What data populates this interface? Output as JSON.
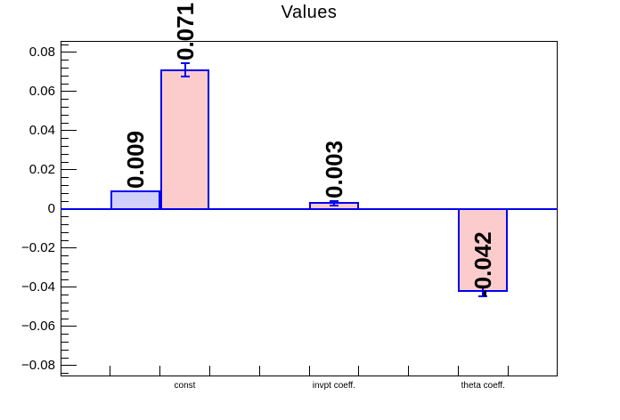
{
  "chart_data": {
    "type": "bar",
    "title": "Values",
    "xlabel": "",
    "ylabel": "",
    "ylim": [
      -0.0855,
      0.0859
    ],
    "grid": false,
    "legend": "none",
    "n_bins": 10,
    "categories": [
      {
        "label": "const",
        "center_bin": 2.5
      },
      {
        "label": "invpt coeff.",
        "center_bin": 5.5
      },
      {
        "label": "theta coeff.",
        "center_bin": 8.5
      }
    ],
    "bars": [
      {
        "category": "const",
        "bin": 1,
        "value": 0.009,
        "error": 0.0,
        "label": "0.009",
        "fill": "#d0d0fa"
      },
      {
        "category": "const",
        "bin": 2,
        "value": 0.071,
        "error": 0.0035,
        "label": "0.071",
        "fill": "#fccccd"
      },
      {
        "category": "invpt coeff.",
        "bin": 5,
        "value": 0.003,
        "error": 0.001,
        "label": "0.003",
        "fill": "#fccccd"
      },
      {
        "category": "theta coeff.",
        "bin": 8,
        "value": -0.042,
        "error": 0.0025,
        "label": "-0.042",
        "fill": "#fccccd"
      }
    ],
    "y_major_ticks": [
      {
        "value": 0.08,
        "label": "0.08"
      },
      {
        "value": 0.06,
        "label": "0.06"
      },
      {
        "value": 0.04,
        "label": "0.04"
      },
      {
        "value": 0.02,
        "label": "0.02"
      },
      {
        "value": 0.0,
        "label": "0"
      },
      {
        "value": -0.02,
        "label": "−0.02"
      },
      {
        "value": -0.04,
        "label": "−0.04"
      },
      {
        "value": -0.06,
        "label": "−0.06"
      },
      {
        "value": -0.08,
        "label": "−0.08"
      }
    ],
    "y_minor_step": 0.004,
    "colors": {
      "line_blue": "#0000f0",
      "axis_black": "#000000",
      "fill_lavender": "#d0d0fa",
      "fill_pink": "#fccccd",
      "text": "#000000",
      "background": "#ffffff"
    }
  }
}
